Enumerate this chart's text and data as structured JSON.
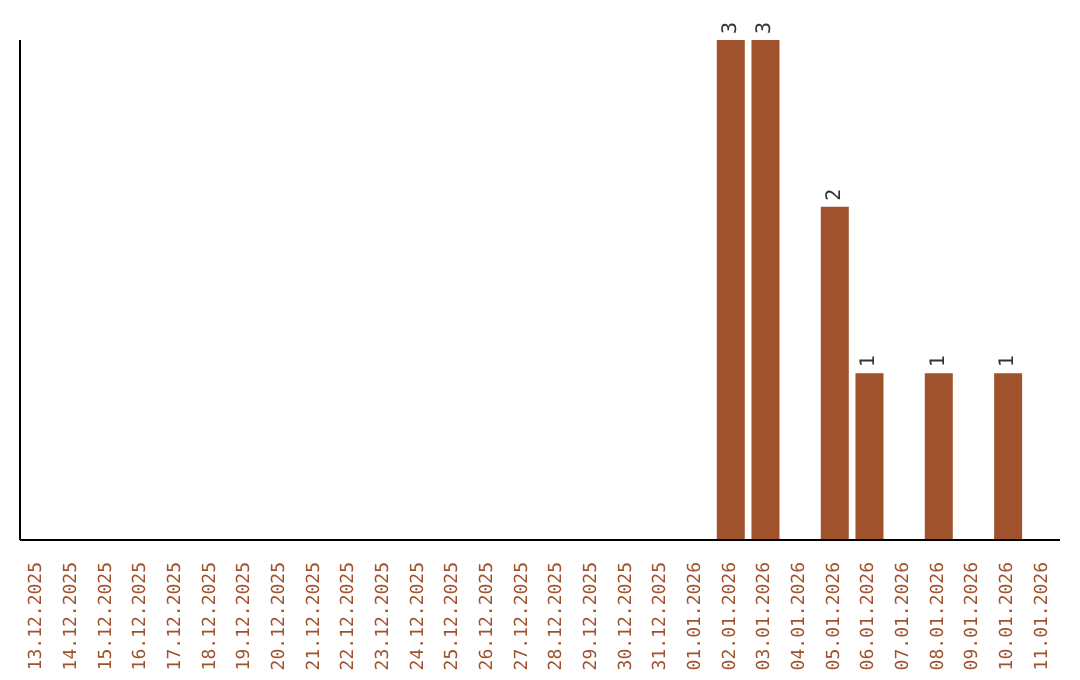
{
  "chart_data": {
    "type": "bar",
    "categories": [
      "13.12.2025",
      "14.12.2025",
      "15.12.2025",
      "16.12.2025",
      "17.12.2025",
      "18.12.2025",
      "19.12.2025",
      "20.12.2025",
      "21.12.2025",
      "22.12.2025",
      "23.12.2025",
      "24.12.2025",
      "25.12.2025",
      "26.12.2025",
      "27.12.2025",
      "28.12.2025",
      "29.12.2025",
      "30.12.2025",
      "31.12.2025",
      "01.01.2026",
      "02.01.2026",
      "03.01.2026",
      "04.01.2026",
      "05.01.2026",
      "06.01.2026",
      "07.01.2026",
      "08.01.2026",
      "09.01.2026",
      "10.01.2026",
      "11.01.2026"
    ],
    "values": [
      null,
      null,
      null,
      null,
      null,
      null,
      null,
      null,
      null,
      null,
      null,
      null,
      null,
      null,
      null,
      null,
      null,
      null,
      null,
      null,
      3,
      3,
      null,
      2,
      1,
      null,
      1,
      null,
      1,
      null
    ],
    "value_labels": [
      null,
      null,
      null,
      null,
      null,
      null,
      null,
      null,
      null,
      null,
      null,
      null,
      null,
      null,
      null,
      null,
      null,
      null,
      null,
      null,
      "3",
      "3",
      null,
      "2",
      "1",
      null,
      "1",
      null,
      "1",
      null
    ],
    "color": "#a0522d",
    "grid": false,
    "legend": false
  }
}
